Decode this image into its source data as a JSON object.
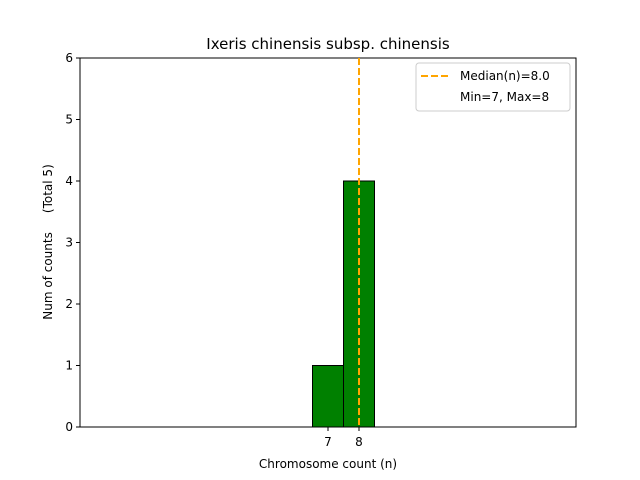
{
  "chart_data": {
    "type": "bar",
    "title": "Ixeris chinensis subsp. chinensis",
    "xlabel": "Chromosome count (n)",
    "ylabel": "Num of counts     (Total 5)",
    "bars": [
      {
        "x": 7,
        "count": 1
      },
      {
        "x": 8,
        "count": 4
      }
    ],
    "bar_width": 1,
    "xlim": [
      -1,
      15
    ],
    "ylim": [
      0,
      6
    ],
    "xticks": [
      7,
      8
    ],
    "yticks": [
      0,
      1,
      2,
      3,
      4,
      5,
      6
    ],
    "median": 8.0,
    "baseline_end": 11,
    "legend": {
      "placement": "top-right",
      "entries": [
        "Median(n)=8.0",
        "Min=7, Max=8"
      ]
    },
    "colors": {
      "bar": "#008000",
      "bar_edge": "#000000",
      "median": "#FFA500"
    }
  }
}
